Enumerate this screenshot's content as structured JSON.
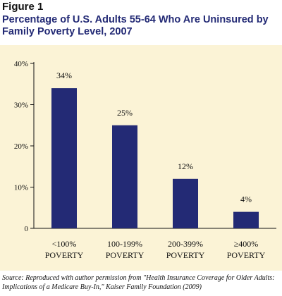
{
  "figure": {
    "label": "Figure 1",
    "source": "Source: Reproduced with author permission from \"Health Insurance Coverage for Older Adults: Implications of a Medicare Buy-In,\" Kaiser Family Foundation (2009)"
  },
  "chart_data": {
    "type": "bar",
    "title": "Percentage of U.S. Adults 55-64 Who Are Uninsured by Family Poverty Level, 2007",
    "xlabel": "",
    "ylabel": "",
    "categories": [
      [
        "<100%",
        "POVERTY"
      ],
      [
        "100-199%",
        "POVERTY"
      ],
      [
        "200-399%",
        "POVERTY"
      ],
      [
        "≥400%",
        "POVERTY"
      ]
    ],
    "values": [
      34,
      25,
      12,
      4
    ],
    "value_labels": [
      "34%",
      "25%",
      "12%",
      "4%"
    ],
    "ylim": [
      0,
      40
    ],
    "yticks": [
      0,
      10,
      20,
      30,
      40
    ],
    "ytick_labels": [
      "0",
      "10%",
      "20%",
      "30%",
      "40%"
    ],
    "grid": false,
    "legend": "none",
    "colors": {
      "bar": "#232a75",
      "panel_background": "#fbf3d6",
      "title": "#232a75",
      "axis": "#111111"
    }
  }
}
